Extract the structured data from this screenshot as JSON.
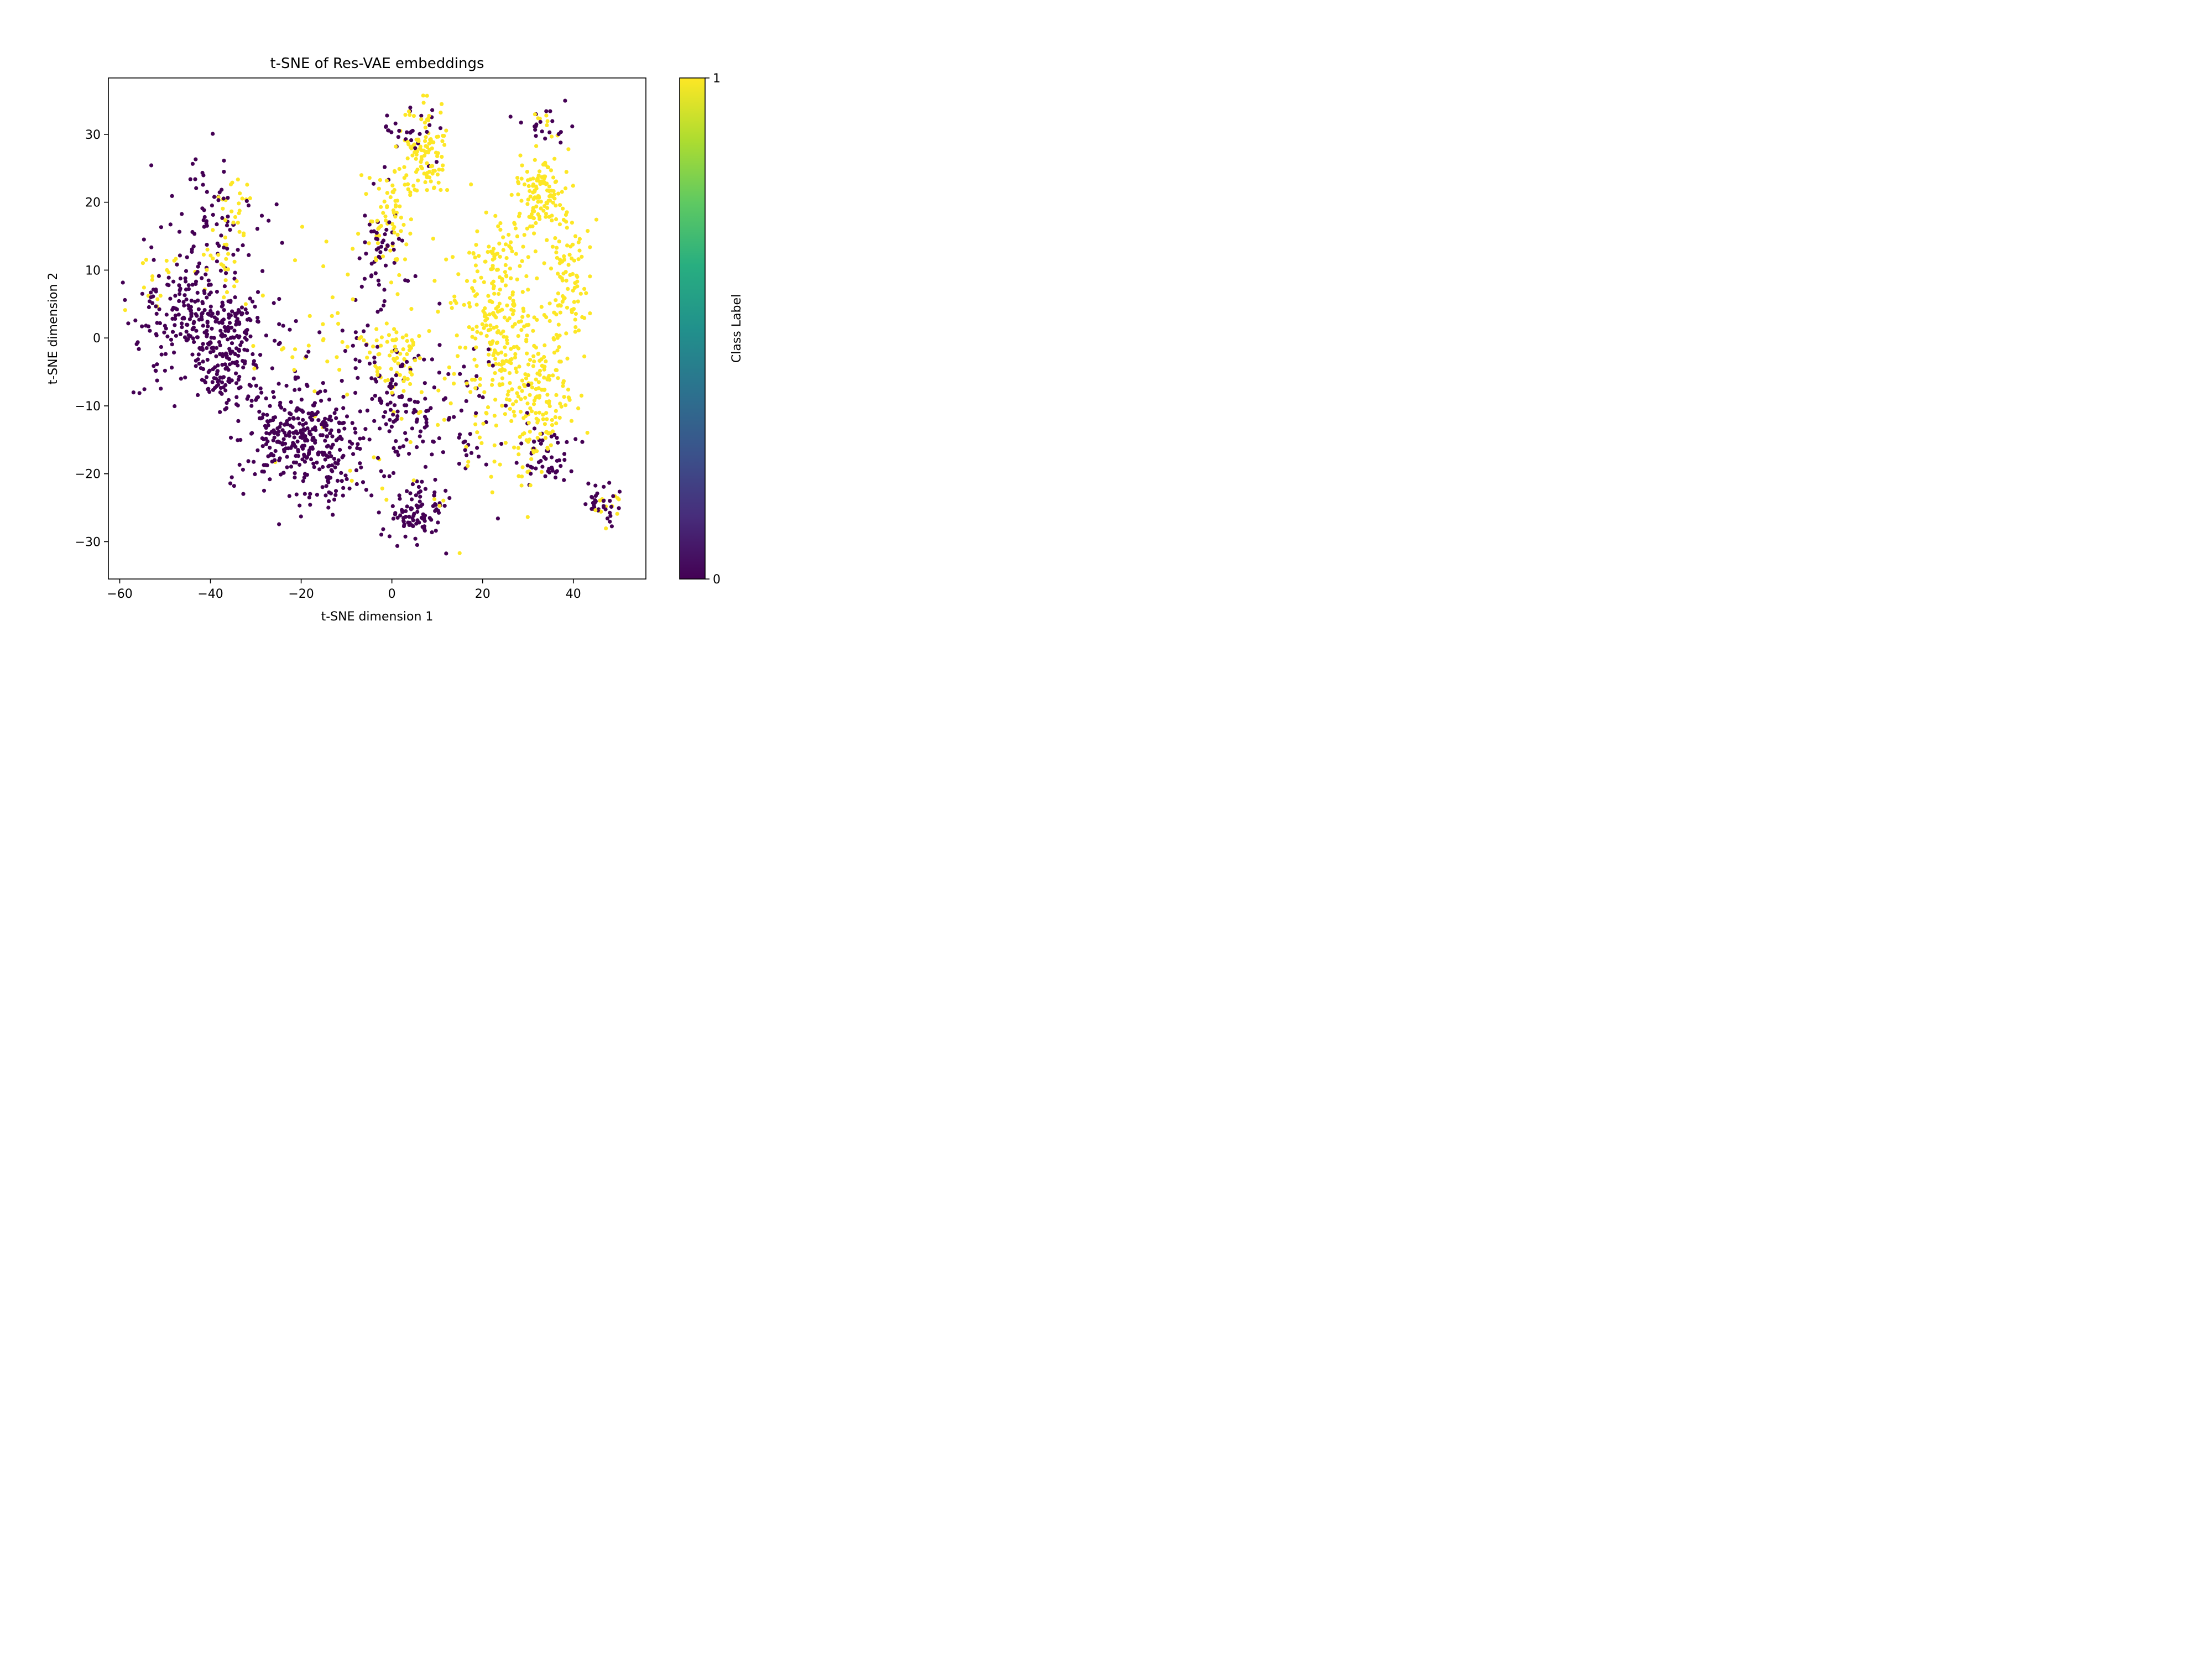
{
  "chart_data": {
    "type": "scatter",
    "title": "t-SNE of Res-VAE embeddings",
    "xlabel": "t-SNE dimension 1",
    "ylabel": "t-SNE dimension 2",
    "xlim": [
      -62.5,
      56.0
    ],
    "ylim": [
      -35.5,
      38.3
    ],
    "x_ticks": [
      -60,
      -40,
      -20,
      0,
      20,
      40
    ],
    "x_tick_labels": [
      "−60",
      "−40",
      "−20",
      "0",
      "20",
      "40"
    ],
    "y_ticks": [
      -30,
      -20,
      -10,
      0,
      10,
      20,
      30
    ],
    "y_tick_labels": [
      "−30",
      "−20",
      "−10",
      "0",
      "10",
      "20",
      "30"
    ],
    "grid": false,
    "colorbar": {
      "label": "Class Label",
      "min": 0,
      "max": 1,
      "ticks": [
        0,
        1
      ],
      "tick_labels": [
        "0",
        "1"
      ],
      "colormap": "viridis"
    },
    "class_colors": {
      "0": "#440154",
      "1": "#fde725"
    },
    "clusters": [
      {
        "class": 0,
        "cx": -44.0,
        "cy": 4.0,
        "sx": 3.5,
        "sy": 3.0,
        "n": 110
      },
      {
        "class": 0,
        "cx": -38.0,
        "cy": -3.5,
        "sx": 3.5,
        "sy": 3.0,
        "n": 130
      },
      {
        "class": 0,
        "cx": -35.0,
        "cy": 3.0,
        "sx": 2.5,
        "sy": 2.5,
        "n": 60
      },
      {
        "class": 0,
        "cx": -40.0,
        "cy": 17.0,
        "sx": 5.0,
        "sy": 5.0,
        "n": 70
      },
      {
        "class": 0,
        "cx": -52.0,
        "cy": 2.0,
        "sx": 4.0,
        "sy": 6.0,
        "n": 60
      },
      {
        "class": 0,
        "cx": -22.0,
        "cy": -14.5,
        "sx": 6.0,
        "sy": 3.5,
        "n": 240
      },
      {
        "class": 0,
        "cx": -12.0,
        "cy": -18.0,
        "sx": 6.0,
        "sy": 4.0,
        "n": 110
      },
      {
        "class": 0,
        "cx": 5.0,
        "cy": -26.0,
        "sx": 3.0,
        "sy": 2.5,
        "n": 90
      },
      {
        "class": 0,
        "cx": 0.0,
        "cy": -8.0,
        "sx": 6.0,
        "sy": 6.0,
        "n": 110
      },
      {
        "class": 0,
        "cx": -2.0,
        "cy": 12.0,
        "sx": 2.5,
        "sy": 4.0,
        "n": 50
      },
      {
        "class": 0,
        "cx": 34.5,
        "cy": -17.5,
        "sx": 3.5,
        "sy": 2.0,
        "n": 50
      },
      {
        "class": 0,
        "cx": 46.0,
        "cy": -24.5,
        "sx": 2.0,
        "sy": 1.5,
        "n": 35
      },
      {
        "class": 0,
        "cx": 34.0,
        "cy": 31.0,
        "sx": 2.5,
        "sy": 1.5,
        "n": 20
      },
      {
        "class": 0,
        "cx": 5.0,
        "cy": 30.0,
        "sx": 4.0,
        "sy": 2.5,
        "n": 30
      },
      {
        "class": 0,
        "cx": -28.0,
        "cy": -3.0,
        "sx": 8.0,
        "sy": 6.0,
        "n": 60
      },
      {
        "class": 0,
        "cx": 15.0,
        "cy": -10.0,
        "sx": 8.0,
        "sy": 8.0,
        "n": 60
      },
      {
        "class": 1,
        "cx": 7.0,
        "cy": 27.0,
        "sx": 2.5,
        "sy": 3.5,
        "n": 110
      },
      {
        "class": 1,
        "cx": 33.0,
        "cy": 21.0,
        "sx": 3.0,
        "sy": 3.0,
        "n": 110
      },
      {
        "class": 1,
        "cx": 39.0,
        "cy": 10.0,
        "sx": 2.5,
        "sy": 4.5,
        "n": 90
      },
      {
        "class": 1,
        "cx": 24.0,
        "cy": 0.0,
        "sx": 5.5,
        "sy": 6.5,
        "n": 240
      },
      {
        "class": 1,
        "cx": 34.0,
        "cy": -7.0,
        "sx": 3.5,
        "sy": 3.5,
        "n": 80
      },
      {
        "class": 1,
        "cx": 1.0,
        "cy": -3.0,
        "sx": 3.5,
        "sy": 3.0,
        "n": 70
      },
      {
        "class": 1,
        "cx": 0.0,
        "cy": 17.0,
        "sx": 2.5,
        "sy": 4.0,
        "n": 70
      },
      {
        "class": 1,
        "cx": 31.0,
        "cy": -14.0,
        "sx": 3.5,
        "sy": 4.0,
        "n": 60
      },
      {
        "class": 1,
        "cx": 24.0,
        "cy": 11.0,
        "sx": 3.5,
        "sy": 3.0,
        "n": 60
      },
      {
        "class": 1,
        "cx": -34.0,
        "cy": 19.0,
        "sx": 2.5,
        "sy": 3.5,
        "n": 25
      },
      {
        "class": 1,
        "cx": -38.0,
        "cy": 10.0,
        "sx": 3.0,
        "sy": 2.5,
        "n": 25
      },
      {
        "class": 1,
        "cx": -52.0,
        "cy": 9.0,
        "sx": 2.5,
        "sy": 2.5,
        "n": 15
      },
      {
        "class": 1,
        "cx": -12.0,
        "cy": 0.0,
        "sx": 8.0,
        "sy": 8.0,
        "n": 40
      },
      {
        "class": 1,
        "cx": 10.0,
        "cy": -18.0,
        "sx": 8.0,
        "sy": 5.0,
        "n": 30
      },
      {
        "class": 1,
        "cx": 47.0,
        "cy": -25.0,
        "sx": 1.5,
        "sy": 1.0,
        "n": 12
      },
      {
        "class": 1,
        "cx": 34.0,
        "cy": 31.5,
        "sx": 1.5,
        "sy": 0.8,
        "n": 8
      }
    ]
  }
}
